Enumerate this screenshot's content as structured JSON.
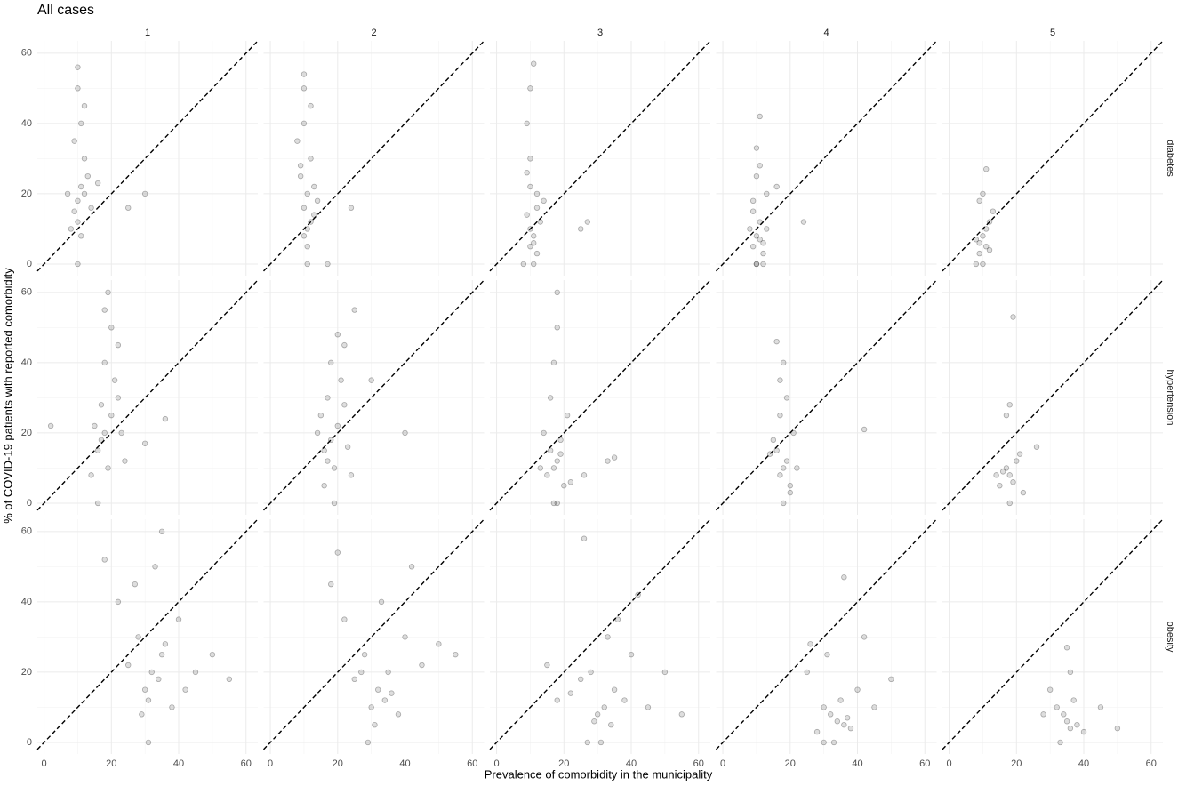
{
  "chart_data": {
    "type": "scatter",
    "title": "All cases",
    "xlabel": "Prevalence of comorbidity in the municipality",
    "ylabel": "% of COVID-19 patients with reported comorbidity",
    "color": "#000000",
    "grid": true,
    "xlim": [
      -2,
      63.5
    ],
    "ylim": [
      -3.3,
      63.5
    ],
    "xticks": [
      0,
      20,
      40,
      60
    ],
    "yticks": [
      0,
      20,
      40,
      60
    ],
    "columns": [
      "1",
      "2",
      "3",
      "4",
      "5"
    ],
    "rows": [
      {
        "label": "diabetes",
        "panels": [
          {
            "x": [
              10,
              11,
              9,
              12,
              10,
              13,
              8,
              11,
              10,
              12,
              9,
              14,
              11,
              10,
              16,
              25,
              30,
              7,
              12,
              10
            ],
            "y": [
              18,
              22,
              15,
              30,
              12,
              25,
              10,
              40,
              50,
              20,
              35,
              16,
              8,
              0,
              23,
              16,
              20,
              20,
              45,
              56
            ]
          },
          {
            "x": [
              10,
              11,
              12,
              9,
              10,
              13,
              11,
              8,
              12,
              10,
              14,
              9,
              24,
              11,
              17,
              10,
              12,
              11,
              10,
              13
            ],
            "y": [
              16,
              20,
              12,
              28,
              40,
              22,
              10,
              35,
              45,
              8,
              18,
              25,
              16,
              0,
              0,
              54,
              30,
              5,
              50,
              14
            ]
          },
          {
            "x": [
              10,
              11,
              9,
              12,
              10,
              13,
              8,
              11,
              10,
              9,
              12,
              10,
              25,
              27,
              11,
              10,
              12,
              14,
              9,
              11
            ],
            "y": [
              10,
              8,
              14,
              20,
              5,
              12,
              0,
              0,
              30,
              40,
              16,
              50,
              10,
              12,
              57,
              22,
              3,
              18,
              26,
              6
            ]
          },
          {
            "x": [
              10,
              9,
              11,
              12,
              10,
              8,
              13,
              11,
              9,
              10,
              12,
              16,
              24,
              10,
              11,
              9,
              12,
              10,
              11,
              13
            ],
            "y": [
              8,
              5,
              12,
              0,
              0,
              10,
              20,
              7,
              15,
              25,
              3,
              22,
              12,
              33,
              42,
              18,
              6,
              0,
              28,
              10
            ]
          },
          {
            "x": [
              9,
              10,
              11,
              8,
              10,
              12,
              9,
              11,
              13,
              10,
              12,
              8,
              11,
              9
            ],
            "y": [
              6,
              8,
              5,
              0,
              0,
              12,
              18,
              10,
              15,
              20,
              4,
              7,
              27,
              3
            ]
          }
        ]
      },
      {
        "label": "hypertension",
        "panels": [
          {
            "x": [
              18,
              20,
              16,
              22,
              17,
              19,
              15,
              21,
              18,
              24,
              14,
              20,
              17,
              23,
              19,
              36,
              2,
              30,
              18,
              16,
              22
            ],
            "y": [
              20,
              25,
              15,
              30,
              18,
              10,
              22,
              35,
              40,
              12,
              8,
              50,
              28,
              20,
              60,
              24,
              22,
              17,
              55,
              0,
              45
            ]
          },
          {
            "x": [
              18,
              20,
              16,
              22,
              17,
              19,
              15,
              21,
              18,
              24,
              14,
              20,
              17,
              23,
              19,
              40,
              30,
              25,
              16,
              22
            ],
            "y": [
              18,
              22,
              15,
              28,
              12,
              10,
              25,
              35,
              40,
              8,
              20,
              48,
              30,
              16,
              0,
              20,
              35,
              55,
              5,
              45
            ]
          },
          {
            "x": [
              18,
              17,
              16,
              19,
              15,
              20,
              14,
              18,
              17,
              21,
              16,
              19,
              13,
              22,
              17,
              18,
              33,
              35,
              26,
              18
            ],
            "y": [
              12,
              10,
              15,
              18,
              8,
              5,
              20,
              0,
              0,
              25,
              30,
              14,
              10,
              6,
              40,
              50,
              12,
              13,
              8,
              60
            ]
          },
          {
            "x": [
              18,
              17,
              19,
              16,
              20,
              15,
              18,
              21,
              17,
              19,
              22,
              14,
              18,
              42,
              16,
              20,
              17
            ],
            "y": [
              10,
              8,
              12,
              15,
              5,
              18,
              0,
              20,
              25,
              30,
              10,
              14,
              40,
              21,
              46,
              3,
              35
            ]
          },
          {
            "x": [
              18,
              17,
              19,
              16,
              15,
              20,
              18,
              17,
              21,
              14,
              19,
              18,
              26,
              22
            ],
            "y": [
              8,
              10,
              6,
              9,
              5,
              12,
              0,
              25,
              14,
              8,
              53,
              28,
              16,
              3
            ]
          }
        ]
      },
      {
        "label": "obesity",
        "panels": [
          {
            "x": [
              32,
              30,
              35,
              28,
              34,
              38,
              25,
              40,
              33,
              31,
              22,
              45,
              36,
              29,
              50,
              18,
              35,
              42,
              31,
              27,
              55
            ],
            "y": [
              20,
              15,
              25,
              30,
              18,
              10,
              22,
              35,
              50,
              12,
              40,
              20,
              28,
              8,
              25,
              52,
              60,
              15,
              0,
              45,
              18
            ]
          },
          {
            "x": [
              32,
              30,
              35,
              28,
              34,
              38,
              25,
              40,
              33,
              31,
              22,
              45,
              36,
              29,
              50,
              18,
              42,
              27,
              55,
              20
            ],
            "y": [
              15,
              10,
              20,
              25,
              12,
              8,
              18,
              30,
              40,
              5,
              35,
              22,
              14,
              0,
              28,
              45,
              50,
              20,
              25,
              54
            ]
          },
          {
            "x": [
              32,
              30,
              35,
              28,
              34,
              38,
              25,
              40,
              33,
              31,
              22,
              45,
              36,
              29,
              50,
              18,
              42,
              27,
              55,
              15,
              26
            ],
            "y": [
              10,
              8,
              15,
              20,
              5,
              12,
              18,
              25,
              30,
              0,
              14,
              10,
              35,
              6,
              20,
              12,
              42,
              0,
              8,
              22,
              58
            ]
          },
          {
            "x": [
              34,
              32,
              36,
              30,
              38,
              35,
              28,
              40,
              33,
              37,
              25,
              45,
              31,
              42,
              36,
              50,
              30,
              26
            ],
            "y": [
              6,
              8,
              5,
              10,
              4,
              12,
              3,
              15,
              0,
              7,
              20,
              10,
              25,
              30,
              47,
              18,
              0,
              28
            ]
          },
          {
            "x": [
              35,
              34,
              36,
              32,
              38,
              33,
              37,
              30,
              40,
              35,
              45,
              28,
              50,
              36
            ],
            "y": [
              6,
              8,
              4,
              10,
              5,
              0,
              12,
              15,
              3,
              27,
              10,
              8,
              4,
              20
            ]
          }
        ]
      }
    ]
  }
}
